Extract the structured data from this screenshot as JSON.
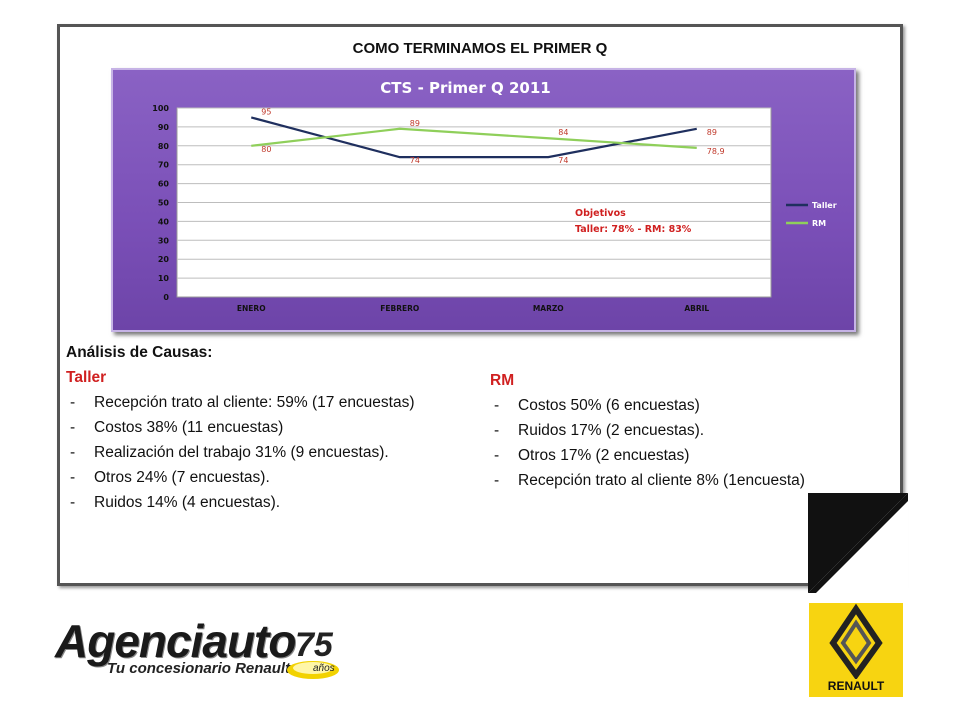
{
  "page_title": "COMO TERMINAMOS  EL PRIMER Q",
  "chart_data": {
    "type": "line",
    "title": "CTS - Primer Q  2011",
    "categories": [
      "ENERO",
      "FEBRERO",
      "MARZO",
      "ABRIL"
    ],
    "series": [
      {
        "name": "Taller",
        "values": [
          95,
          74,
          74,
          89
        ],
        "labels": [
          "95",
          "74",
          "74",
          "89"
        ],
        "color": "#1f2f5e"
      },
      {
        "name": "RM",
        "values": [
          80,
          89,
          84,
          78.9
        ],
        "labels": [
          "80",
          "89",
          "84",
          "78,9"
        ],
        "color": "#8fcf5a"
      }
    ],
    "ylim": [
      0,
      100
    ],
    "yticks": [
      0,
      10,
      20,
      30,
      40,
      50,
      60,
      70,
      80,
      90,
      100
    ],
    "grid": true,
    "legend_position": "right",
    "annotation": {
      "line1": "Objetivos",
      "line2": "Taller: 78%  - RM: 83%",
      "color": "#d02020"
    }
  },
  "causes": {
    "heading": "Análisis de Causas:",
    "taller": {
      "title": "Taller",
      "items": [
        "Recepción trato al cliente: 59% (17 encuestas)",
        "Costos 38% (11 encuestas)",
        "Realización del trabajo 31% (9 encuestas).",
        "Otros  24%  (7 encuestas).",
        "Ruidos 14% (4 encuestas)."
      ]
    },
    "rm": {
      "title": "RM",
      "items": [
        "Costos 50% (6 encuestas)",
        "Ruidos 17% (2 encuestas).",
        "Otros 17% (2 encuestas)",
        "Recepción trato al cliente 8% (1encuesta)"
      ]
    }
  },
  "logo": {
    "name": "Agenciauto",
    "tagline": "Tu concesionario Renault",
    "badge_number": "75",
    "badge_text": "años"
  },
  "brand": {
    "name": "RENAULT",
    "color": "#f7d411"
  }
}
